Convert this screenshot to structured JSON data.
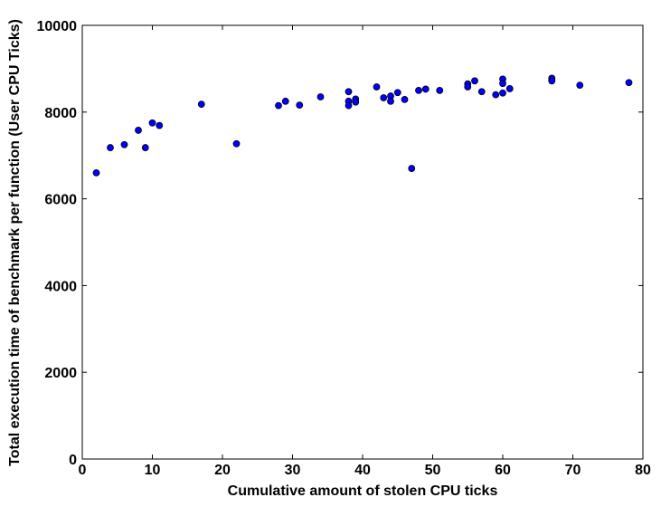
{
  "chart_data": {
    "type": "scatter",
    "xlabel": "Cumulative amount of stolen CPU ticks",
    "ylabel": "Total execution time of benchmark per function (User CPU Ticks)",
    "xlim": [
      0,
      80
    ],
    "ylim": [
      0,
      10000
    ],
    "xticks": [
      0,
      10,
      20,
      30,
      40,
      50,
      60,
      70,
      80
    ],
    "yticks": [
      0,
      2000,
      4000,
      6000,
      8000,
      10000
    ],
    "grid": false,
    "legend": "none",
    "marker_color": "#0000ff",
    "marker_edge": "#000000",
    "points": [
      {
        "x": 2,
        "y": 6600
      },
      {
        "x": 4,
        "y": 7180
      },
      {
        "x": 6,
        "y": 7250
      },
      {
        "x": 8,
        "y": 7580
      },
      {
        "x": 9,
        "y": 7180
      },
      {
        "x": 10,
        "y": 7750
      },
      {
        "x": 11,
        "y": 7690
      },
      {
        "x": 17,
        "y": 8180
      },
      {
        "x": 22,
        "y": 7270
      },
      {
        "x": 28,
        "y": 8150
      },
      {
        "x": 29,
        "y": 8250
      },
      {
        "x": 31,
        "y": 8160
      },
      {
        "x": 34,
        "y": 8350
      },
      {
        "x": 38,
        "y": 8470
      },
      {
        "x": 38,
        "y": 8250
      },
      {
        "x": 38,
        "y": 8150
      },
      {
        "x": 39,
        "y": 8300
      },
      {
        "x": 39,
        "y": 8230
      },
      {
        "x": 42,
        "y": 8580
      },
      {
        "x": 43,
        "y": 8330
      },
      {
        "x": 44,
        "y": 8370
      },
      {
        "x": 44,
        "y": 8250
      },
      {
        "x": 45,
        "y": 8450
      },
      {
        "x": 46,
        "y": 8290
      },
      {
        "x": 47,
        "y": 6700
      },
      {
        "x": 48,
        "y": 8500
      },
      {
        "x": 49,
        "y": 8530
      },
      {
        "x": 51,
        "y": 8500
      },
      {
        "x": 55,
        "y": 8650
      },
      {
        "x": 55,
        "y": 8580
      },
      {
        "x": 56,
        "y": 8720
      },
      {
        "x": 57,
        "y": 8470
      },
      {
        "x": 59,
        "y": 8400
      },
      {
        "x": 60,
        "y": 8760
      },
      {
        "x": 60,
        "y": 8660
      },
      {
        "x": 60,
        "y": 8440
      },
      {
        "x": 61,
        "y": 8540
      },
      {
        "x": 67,
        "y": 8780
      },
      {
        "x": 67,
        "y": 8720
      },
      {
        "x": 71,
        "y": 8620
      },
      {
        "x": 78,
        "y": 8680
      }
    ]
  }
}
